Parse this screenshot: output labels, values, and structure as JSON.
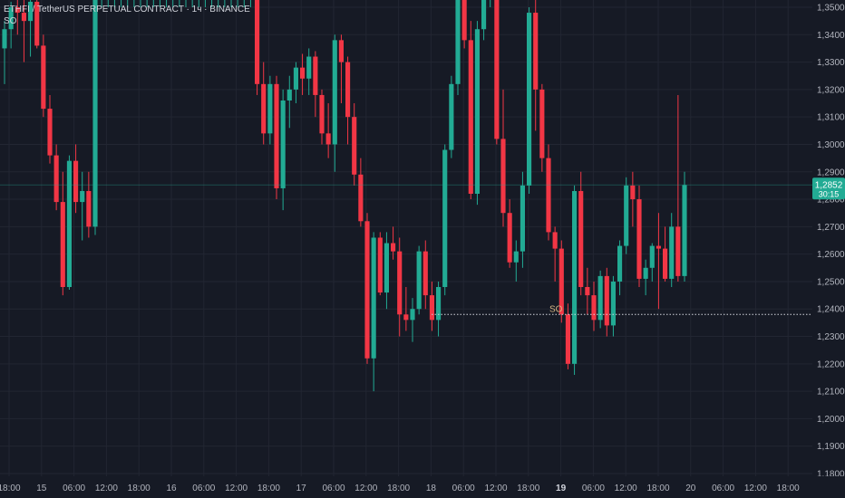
{
  "header": {
    "title": "ETHFI / TetherUS PERPETUAL CONTRACT · 1ч · BINANCE",
    "indicator": "SO"
  },
  "colors": {
    "background": "#161a25",
    "grid": "#222632",
    "up": "#22ab94",
    "down": "#f23645",
    "axis_text": "#b2b5be",
    "price_badge": "#22ab94",
    "level_line": "#d1d4dc"
  },
  "chart_data": {
    "type": "candlestick",
    "title": "ETHFI / TetherUS PERPETUAL CONTRACT · 1ч · BINANCE",
    "ylim": [
      1.179,
      1.355
    ],
    "y_ticks": [
      "1,3500",
      "1,3400",
      "1,3300",
      "1,3200",
      "1,3100",
      "1,3000",
      "1,2900",
      "1,2800",
      "1,2700",
      "1,2600",
      "1,2500",
      "1,2400",
      "1,2300",
      "1,2200",
      "1,2100",
      "1,2000",
      "1,1900",
      "1,1800"
    ],
    "x_ticks": [
      {
        "label": "18:00",
        "bold": false
      },
      {
        "label": "15",
        "bold": false
      },
      {
        "label": "06:00",
        "bold": false
      },
      {
        "label": "12:00",
        "bold": false
      },
      {
        "label": "18:00",
        "bold": false
      },
      {
        "label": "16",
        "bold": false
      },
      {
        "label": "06:00",
        "bold": false
      },
      {
        "label": "12:00",
        "bold": false
      },
      {
        "label": "18:00",
        "bold": false
      },
      {
        "label": "17",
        "bold": false
      },
      {
        "label": "06:00",
        "bold": false
      },
      {
        "label": "12:00",
        "bold": false
      },
      {
        "label": "18:00",
        "bold": false
      },
      {
        "label": "18",
        "bold": false
      },
      {
        "label": "06:00",
        "bold": false
      },
      {
        "label": "12:00",
        "bold": false
      },
      {
        "label": "18:00",
        "bold": false
      },
      {
        "label": "19",
        "bold": true
      },
      {
        "label": "06:00",
        "bold": false
      },
      {
        "label": "12:00",
        "bold": false
      },
      {
        "label": "18:00",
        "bold": false
      },
      {
        "label": "20",
        "bold": false
      },
      {
        "label": "06:00",
        "bold": false
      },
      {
        "label": "12:00",
        "bold": false
      },
      {
        "label": "18:00",
        "bold": false
      }
    ],
    "current_price": "1,2852",
    "countdown": "30:15",
    "level": {
      "label": "SO",
      "value": 1.238
    },
    "candles": [
      {
        "o": 1.335,
        "h": 1.345,
        "l": 1.322,
        "c": 1.342
      },
      {
        "o": 1.342,
        "h": 1.352,
        "l": 1.335,
        "c": 1.35
      },
      {
        "o": 1.35,
        "h": 1.355,
        "l": 1.34,
        "c": 1.348
      },
      {
        "o": 1.348,
        "h": 1.355,
        "l": 1.33,
        "c": 1.345
      },
      {
        "o": 1.345,
        "h": 1.355,
        "l": 1.332,
        "c": 1.352
      },
      {
        "o": 1.352,
        "h": 1.355,
        "l": 1.335,
        "c": 1.336
      },
      {
        "o": 1.336,
        "h": 1.34,
        "l": 1.31,
        "c": 1.313
      },
      {
        "o": 1.313,
        "h": 1.318,
        "l": 1.293,
        "c": 1.296
      },
      {
        "o": 1.296,
        "h": 1.3,
        "l": 1.276,
        "c": 1.279
      },
      {
        "o": 1.279,
        "h": 1.29,
        "l": 1.245,
        "c": 1.248
      },
      {
        "o": 1.248,
        "h": 1.296,
        "l": 1.247,
        "c": 1.294
      },
      {
        "o": 1.294,
        "h": 1.3,
        "l": 1.275,
        "c": 1.279
      },
      {
        "o": 1.279,
        "h": 1.29,
        "l": 1.265,
        "c": 1.283
      },
      {
        "o": 1.283,
        "h": 1.29,
        "l": 1.266,
        "c": 1.27
      },
      {
        "o": 1.27,
        "h": 1.355,
        "l": 1.267,
        "c": 1.355
      },
      {
        "o": 1.355,
        "h": 1.355,
        "l": 1.35,
        "c": 1.355
      },
      {
        "o": 1.355,
        "h": 1.355,
        "l": 1.35,
        "c": 1.355
      },
      {
        "o": 1.355,
        "h": 1.355,
        "l": 1.35,
        "c": 1.355
      },
      {
        "o": 1.355,
        "h": 1.355,
        "l": 1.35,
        "c": 1.355
      },
      {
        "o": 1.355,
        "h": 1.355,
        "l": 1.35,
        "c": 1.355
      },
      {
        "o": 1.355,
        "h": 1.355,
        "l": 1.35,
        "c": 1.355
      },
      {
        "o": 1.355,
        "h": 1.355,
        "l": 1.35,
        "c": 1.355
      },
      {
        "o": 1.355,
        "h": 1.355,
        "l": 1.35,
        "c": 1.355
      },
      {
        "o": 1.355,
        "h": 1.355,
        "l": 1.35,
        "c": 1.355
      },
      {
        "o": 1.355,
        "h": 1.355,
        "l": 1.35,
        "c": 1.355
      },
      {
        "o": 1.355,
        "h": 1.355,
        "l": 1.35,
        "c": 1.355
      },
      {
        "o": 1.355,
        "h": 1.355,
        "l": 1.35,
        "c": 1.355
      },
      {
        "o": 1.355,
        "h": 1.355,
        "l": 1.35,
        "c": 1.355
      },
      {
        "o": 1.355,
        "h": 1.355,
        "l": 1.35,
        "c": 1.355
      },
      {
        "o": 1.355,
        "h": 1.355,
        "l": 1.35,
        "c": 1.355
      },
      {
        "o": 1.355,
        "h": 1.355,
        "l": 1.35,
        "c": 1.355
      },
      {
        "o": 1.355,
        "h": 1.355,
        "l": 1.35,
        "c": 1.355
      },
      {
        "o": 1.355,
        "h": 1.355,
        "l": 1.35,
        "c": 1.355
      },
      {
        "o": 1.355,
        "h": 1.355,
        "l": 1.35,
        "c": 1.355
      },
      {
        "o": 1.355,
        "h": 1.355,
        "l": 1.35,
        "c": 1.355
      },
      {
        "o": 1.355,
        "h": 1.355,
        "l": 1.35,
        "c": 1.355
      },
      {
        "o": 1.355,
        "h": 1.355,
        "l": 1.35,
        "c": 1.355
      },
      {
        "o": 1.355,
        "h": 1.355,
        "l": 1.35,
        "c": 1.355
      },
      {
        "o": 1.355,
        "h": 1.355,
        "l": 1.35,
        "c": 1.355
      },
      {
        "o": 1.355,
        "h": 1.355,
        "l": 1.318,
        "c": 1.322
      },
      {
        "o": 1.322,
        "h": 1.33,
        "l": 1.3,
        "c": 1.304
      },
      {
        "o": 1.304,
        "h": 1.325,
        "l": 1.3,
        "c": 1.322
      },
      {
        "o": 1.322,
        "h": 1.325,
        "l": 1.28,
        "c": 1.284
      },
      {
        "o": 1.284,
        "h": 1.32,
        "l": 1.276,
        "c": 1.316
      },
      {
        "o": 1.316,
        "h": 1.325,
        "l": 1.306,
        "c": 1.32
      },
      {
        "o": 1.32,
        "h": 1.33,
        "l": 1.315,
        "c": 1.328
      },
      {
        "o": 1.328,
        "h": 1.333,
        "l": 1.318,
        "c": 1.324
      },
      {
        "o": 1.324,
        "h": 1.335,
        "l": 1.318,
        "c": 1.332
      },
      {
        "o": 1.332,
        "h": 1.334,
        "l": 1.31,
        "c": 1.318
      },
      {
        "o": 1.318,
        "h": 1.32,
        "l": 1.3,
        "c": 1.304
      },
      {
        "o": 1.304,
        "h": 1.315,
        "l": 1.295,
        "c": 1.3
      },
      {
        "o": 1.3,
        "h": 1.34,
        "l": 1.29,
        "c": 1.338
      },
      {
        "o": 1.338,
        "h": 1.34,
        "l": 1.315,
        "c": 1.33
      },
      {
        "o": 1.33,
        "h": 1.332,
        "l": 1.3,
        "c": 1.31
      },
      {
        "o": 1.31,
        "h": 1.315,
        "l": 1.285,
        "c": 1.289
      },
      {
        "o": 1.289,
        "h": 1.295,
        "l": 1.27,
        "c": 1.272
      },
      {
        "o": 1.272,
        "h": 1.275,
        "l": 1.22,
        "c": 1.222
      },
      {
        "o": 1.222,
        "h": 1.268,
        "l": 1.21,
        "c": 1.266
      },
      {
        "o": 1.266,
        "h": 1.268,
        "l": 1.245,
        "c": 1.246
      },
      {
        "o": 1.246,
        "h": 1.268,
        "l": 1.24,
        "c": 1.264
      },
      {
        "o": 1.264,
        "h": 1.27,
        "l": 1.258,
        "c": 1.261
      },
      {
        "o": 1.261,
        "h": 1.266,
        "l": 1.23,
        "c": 1.238
      },
      {
        "o": 1.238,
        "h": 1.248,
        "l": 1.232,
        "c": 1.236
      },
      {
        "o": 1.236,
        "h": 1.244,
        "l": 1.228,
        "c": 1.24
      },
      {
        "o": 1.24,
        "h": 1.263,
        "l": 1.238,
        "c": 1.261
      },
      {
        "o": 1.261,
        "h": 1.265,
        "l": 1.24,
        "c": 1.245
      },
      {
        "o": 1.245,
        "h": 1.25,
        "l": 1.232,
        "c": 1.236
      },
      {
        "o": 1.236,
        "h": 1.25,
        "l": 1.23,
        "c": 1.248
      },
      {
        "o": 1.248,
        "h": 1.3,
        "l": 1.245,
        "c": 1.298
      },
      {
        "o": 1.298,
        "h": 1.325,
        "l": 1.295,
        "c": 1.322
      },
      {
        "o": 1.322,
        "h": 1.355,
        "l": 1.318,
        "c": 1.355
      },
      {
        "o": 1.355,
        "h": 1.355,
        "l": 1.335,
        "c": 1.338
      },
      {
        "o": 1.338,
        "h": 1.345,
        "l": 1.28,
        "c": 1.282
      },
      {
        "o": 1.282,
        "h": 1.345,
        "l": 1.278,
        "c": 1.342
      },
      {
        "o": 1.342,
        "h": 1.355,
        "l": 1.338,
        "c": 1.355
      },
      {
        "o": 1.355,
        "h": 1.355,
        "l": 1.35,
        "c": 1.355
      },
      {
        "o": 1.355,
        "h": 1.355,
        "l": 1.3,
        "c": 1.302
      },
      {
        "o": 1.302,
        "h": 1.32,
        "l": 1.27,
        "c": 1.275
      },
      {
        "o": 1.275,
        "h": 1.28,
        "l": 1.255,
        "c": 1.257
      },
      {
        "o": 1.257,
        "h": 1.265,
        "l": 1.25,
        "c": 1.261
      },
      {
        "o": 1.261,
        "h": 1.29,
        "l": 1.255,
        "c": 1.285
      },
      {
        "o": 1.285,
        "h": 1.35,
        "l": 1.282,
        "c": 1.348
      },
      {
        "o": 1.348,
        "h": 1.355,
        "l": 1.305,
        "c": 1.32
      },
      {
        "o": 1.32,
        "h": 1.322,
        "l": 1.29,
        "c": 1.295
      },
      {
        "o": 1.295,
        "h": 1.3,
        "l": 1.265,
        "c": 1.268
      },
      {
        "o": 1.268,
        "h": 1.27,
        "l": 1.25,
        "c": 1.262
      },
      {
        "o": 1.262,
        "h": 1.265,
        "l": 1.235,
        "c": 1.238
      },
      {
        "o": 1.238,
        "h": 1.242,
        "l": 1.218,
        "c": 1.22
      },
      {
        "o": 1.22,
        "h": 1.285,
        "l": 1.216,
        "c": 1.283
      },
      {
        "o": 1.283,
        "h": 1.29,
        "l": 1.245,
        "c": 1.248
      },
      {
        "o": 1.248,
        "h": 1.255,
        "l": 1.238,
        "c": 1.245
      },
      {
        "o": 1.245,
        "h": 1.25,
        "l": 1.232,
        "c": 1.236
      },
      {
        "o": 1.236,
        "h": 1.254,
        "l": 1.233,
        "c": 1.252
      },
      {
        "o": 1.252,
        "h": 1.255,
        "l": 1.23,
        "c": 1.234
      },
      {
        "o": 1.234,
        "h": 1.252,
        "l": 1.23,
        "c": 1.25
      },
      {
        "o": 1.25,
        "h": 1.265,
        "l": 1.245,
        "c": 1.263
      },
      {
        "o": 1.263,
        "h": 1.288,
        "l": 1.26,
        "c": 1.285
      },
      {
        "o": 1.285,
        "h": 1.29,
        "l": 1.27,
        "c": 1.28
      },
      {
        "o": 1.28,
        "h": 1.285,
        "l": 1.248,
        "c": 1.251
      },
      {
        "o": 1.251,
        "h": 1.258,
        "l": 1.245,
        "c": 1.255
      },
      {
        "o": 1.255,
        "h": 1.264,
        "l": 1.25,
        "c": 1.263
      },
      {
        "o": 1.263,
        "h": 1.275,
        "l": 1.24,
        "c": 1.262
      },
      {
        "o": 1.262,
        "h": 1.27,
        "l": 1.25,
        "c": 1.251
      },
      {
        "o": 1.251,
        "h": 1.275,
        "l": 1.248,
        "c": 1.27
      },
      {
        "o": 1.27,
        "h": 1.318,
        "l": 1.25,
        "c": 1.252
      },
      {
        "o": 1.252,
        "h": 1.29,
        "l": 1.25,
        "c": 1.2852
      }
    ]
  }
}
